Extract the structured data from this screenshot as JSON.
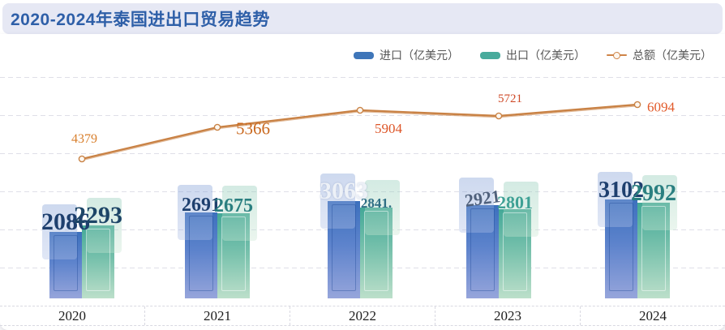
{
  "title": "2020-2024年泰国进出口贸易趋势",
  "legend": [
    {
      "label": "进口（亿美元）",
      "marker": "bar-swatch-icon",
      "color": "#3f76b9"
    },
    {
      "label": "出口（亿美元）",
      "marker": "bar-swatch-icon",
      "color": "#48ab9c"
    },
    {
      "label": "总额（亿美元）",
      "marker": "line-dot-icon",
      "color": "#cf8447"
    }
  ],
  "colors": {
    "header_bg": "#e6e8f4",
    "title_text": "#2e5fa8",
    "import_bar_top": "#3c70bd",
    "import_bar_bottom": "#96a5db",
    "export_bar_top": "#43a897",
    "export_bar_bottom": "#bcdfca",
    "total_line": "#c98245",
    "grid_line": "#dfdfe8",
    "import_label": "#1e3f6e",
    "export_label": "#2a7f80"
  },
  "chart_data": {
    "type": "bar",
    "title": "2020-2024年泰国进出口贸易趋势",
    "categories": [
      "2020",
      "2021",
      "2022",
      "2023",
      "2024"
    ],
    "series": [
      {
        "name": "进口（亿美元）",
        "render": "bar",
        "color": "#3f76b9",
        "values": [
          2086,
          2691,
          3063,
          2921,
          3102
        ],
        "labels": [
          "2086",
          "2691",
          "3063",
          "2921",
          "3102"
        ]
      },
      {
        "name": "出口（亿美元）",
        "render": "bar",
        "color": "#48ab9c",
        "values": [
          2293,
          2675,
          2841,
          2801,
          2992
        ],
        "labels": [
          "2293",
          "2675",
          "2841.",
          "2801",
          "2992"
        ]
      },
      {
        "name": "总额（亿美元）",
        "render": "line",
        "color": "#c98245",
        "values": [
          4379,
          5366,
          5904,
          5721,
          6094
        ],
        "labels": [
          "4379",
          "5366",
          "5904",
          "5721",
          "6094"
        ],
        "label_colors": [
          "#d87f2d",
          "#c9671c",
          "#dd5527",
          "#cf4a28",
          "#e25a2a"
        ]
      }
    ],
    "xlabel": "",
    "ylabel": "",
    "ylim": [
      0,
      8300
    ],
    "grid": "horizontal-dashed",
    "legend_position": "top-right"
  }
}
